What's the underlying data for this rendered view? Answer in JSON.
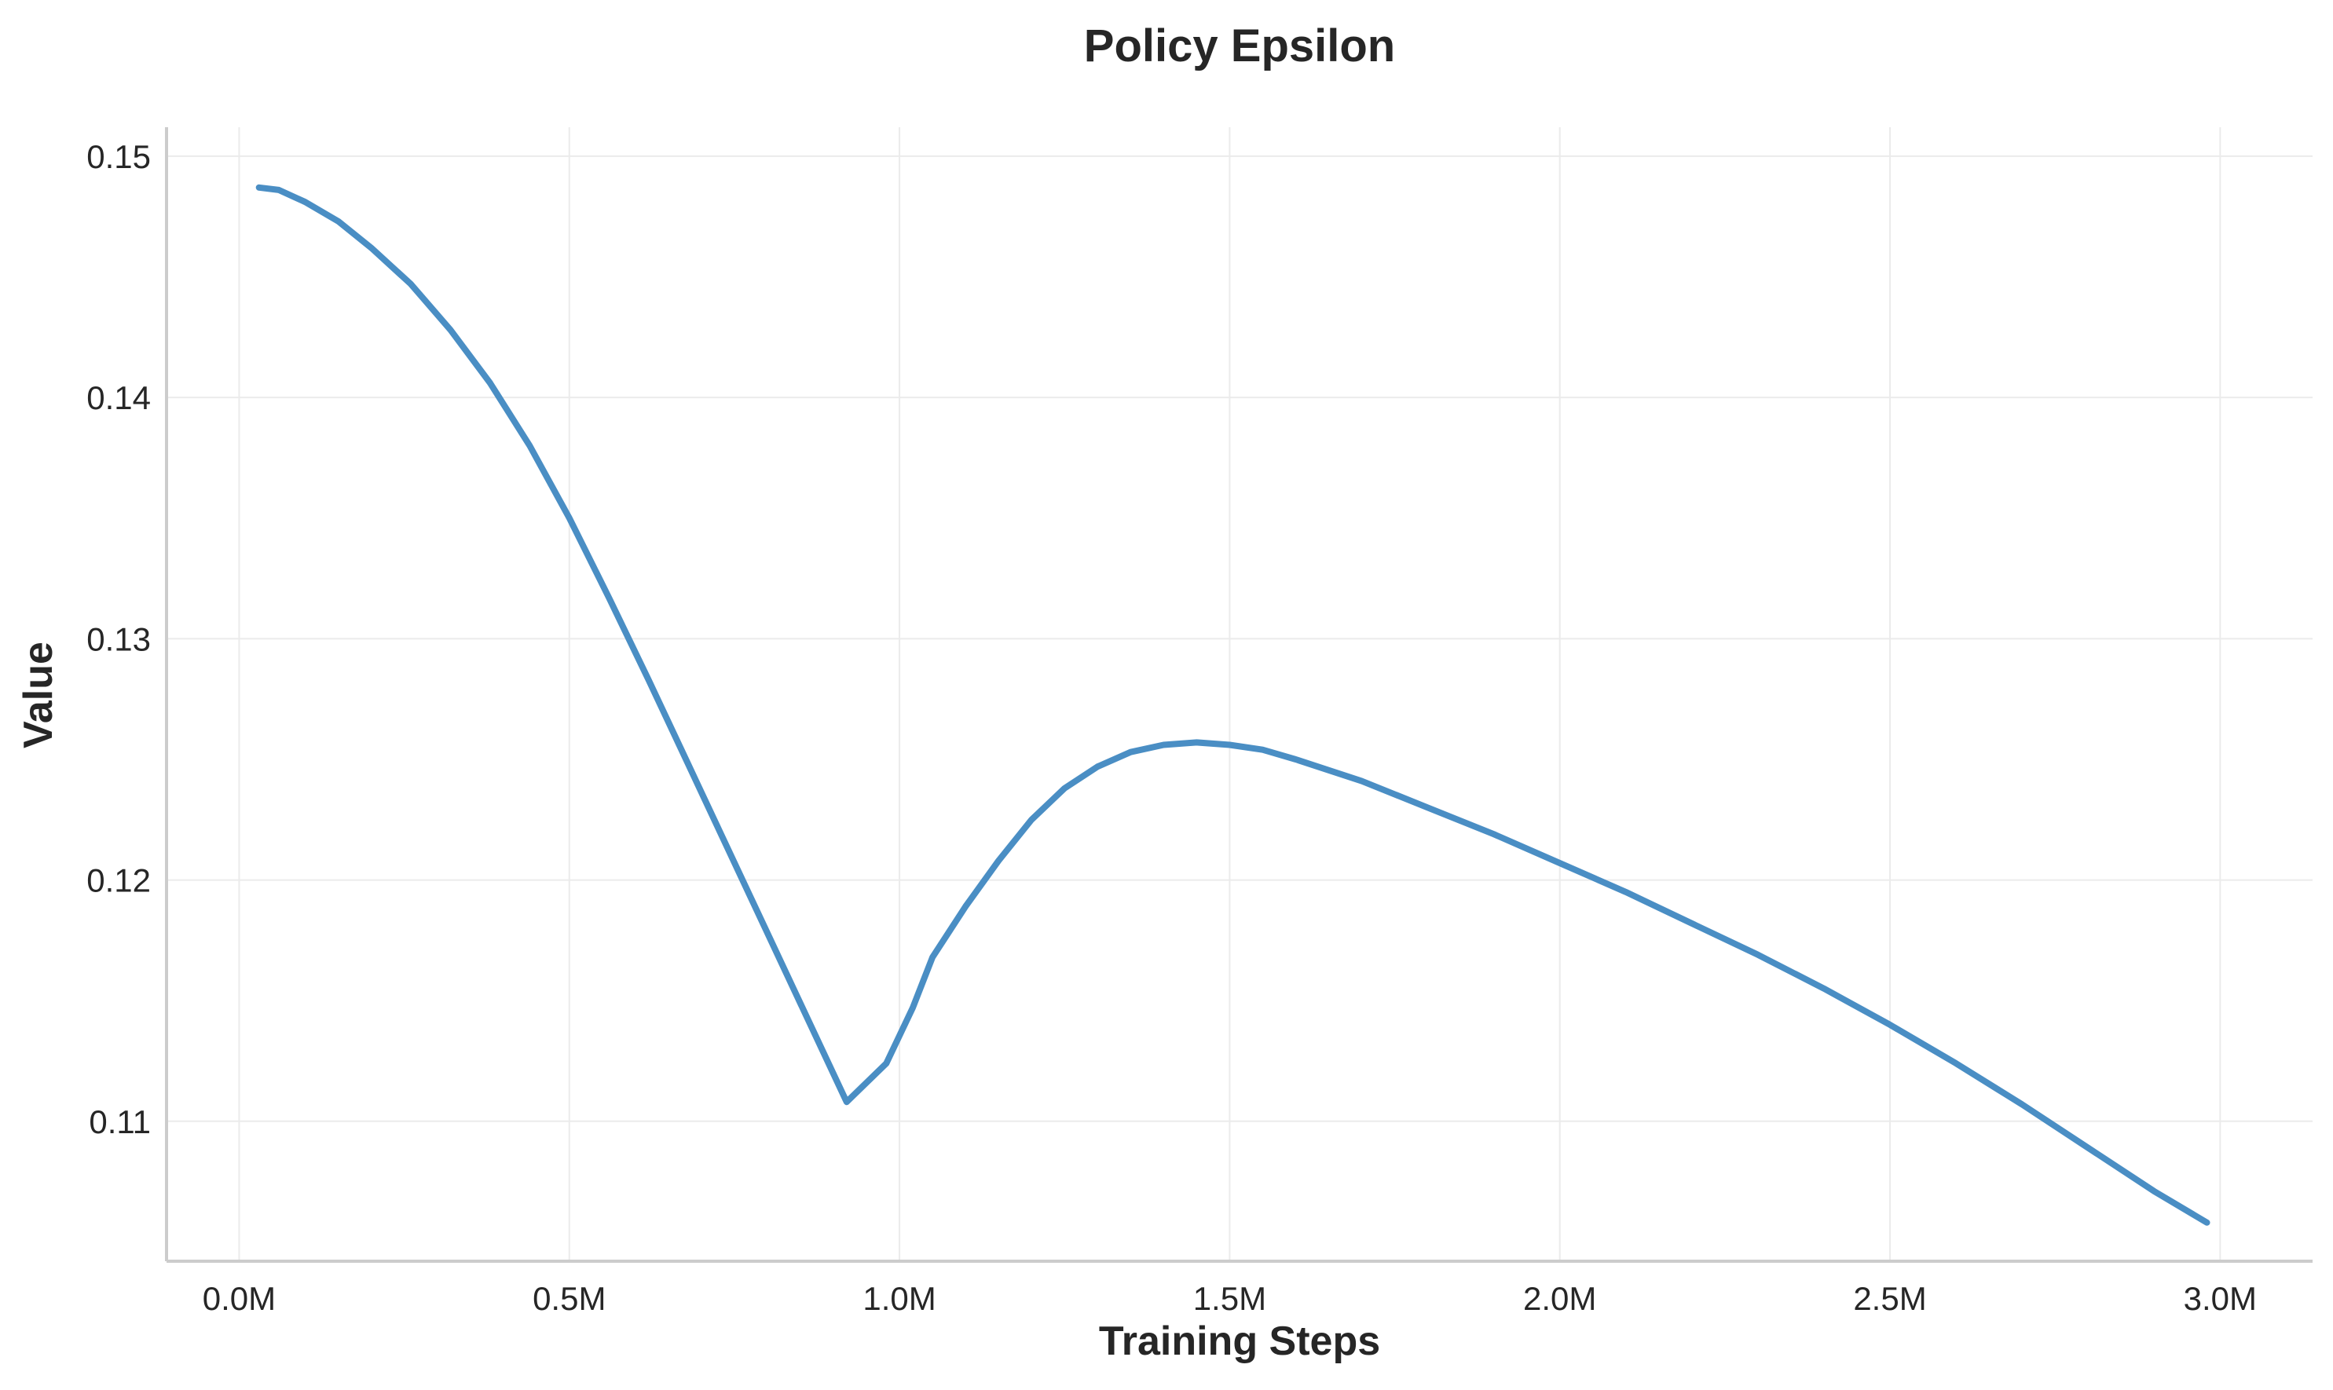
{
  "chart_data": {
    "type": "line",
    "title": "Policy Epsilon",
    "xlabel": "Training Steps",
    "ylabel": "Value",
    "xlim": [
      -110000,
      3140000
    ],
    "ylim": [
      0.1042,
      0.1512
    ],
    "x_ticks": [
      0,
      500000,
      1000000,
      1500000,
      2000000,
      2500000,
      3000000
    ],
    "x_tick_labels": [
      "0.0M",
      "0.5M",
      "1.0M",
      "1.5M",
      "2.0M",
      "2.5M",
      "3.0M"
    ],
    "y_ticks": [
      0.11,
      0.12,
      0.13,
      0.14,
      0.15
    ],
    "y_tick_labels": [
      "0.11",
      "0.12",
      "0.13",
      "0.14",
      "0.15"
    ],
    "grid": true,
    "series": [
      {
        "color": "#4a8ec4",
        "x": [
          30000,
          60000,
          100000,
          150000,
          200000,
          260000,
          320000,
          380000,
          440000,
          500000,
          560000,
          620000,
          680000,
          740000,
          800000,
          860000,
          920000,
          980000,
          1020000,
          1050000,
          1100000,
          1150000,
          1200000,
          1250000,
          1300000,
          1350000,
          1400000,
          1450000,
          1500000,
          1550000,
          1600000,
          1700000,
          1800000,
          1900000,
          2000000,
          2100000,
          2200000,
          2300000,
          2400000,
          2500000,
          2600000,
          2700000,
          2800000,
          2900000,
          2980000
        ],
        "y": [
          0.1487,
          0.1486,
          0.1481,
          0.1473,
          0.1462,
          0.1447,
          0.1428,
          0.1406,
          0.138,
          0.135,
          0.1317,
          0.1283,
          0.1248,
          0.1213,
          0.1178,
          0.1143,
          0.1108,
          0.1124,
          0.1147,
          0.1168,
          0.1189,
          0.1208,
          0.1225,
          0.1238,
          0.1247,
          0.1253,
          0.1256,
          0.1257,
          0.1256,
          0.1254,
          0.125,
          0.1241,
          0.123,
          0.1219,
          0.1207,
          0.1195,
          0.1182,
          0.1169,
          0.1155,
          0.114,
          0.1124,
          0.1107,
          0.1089,
          0.1071,
          0.1058
        ]
      }
    ]
  }
}
